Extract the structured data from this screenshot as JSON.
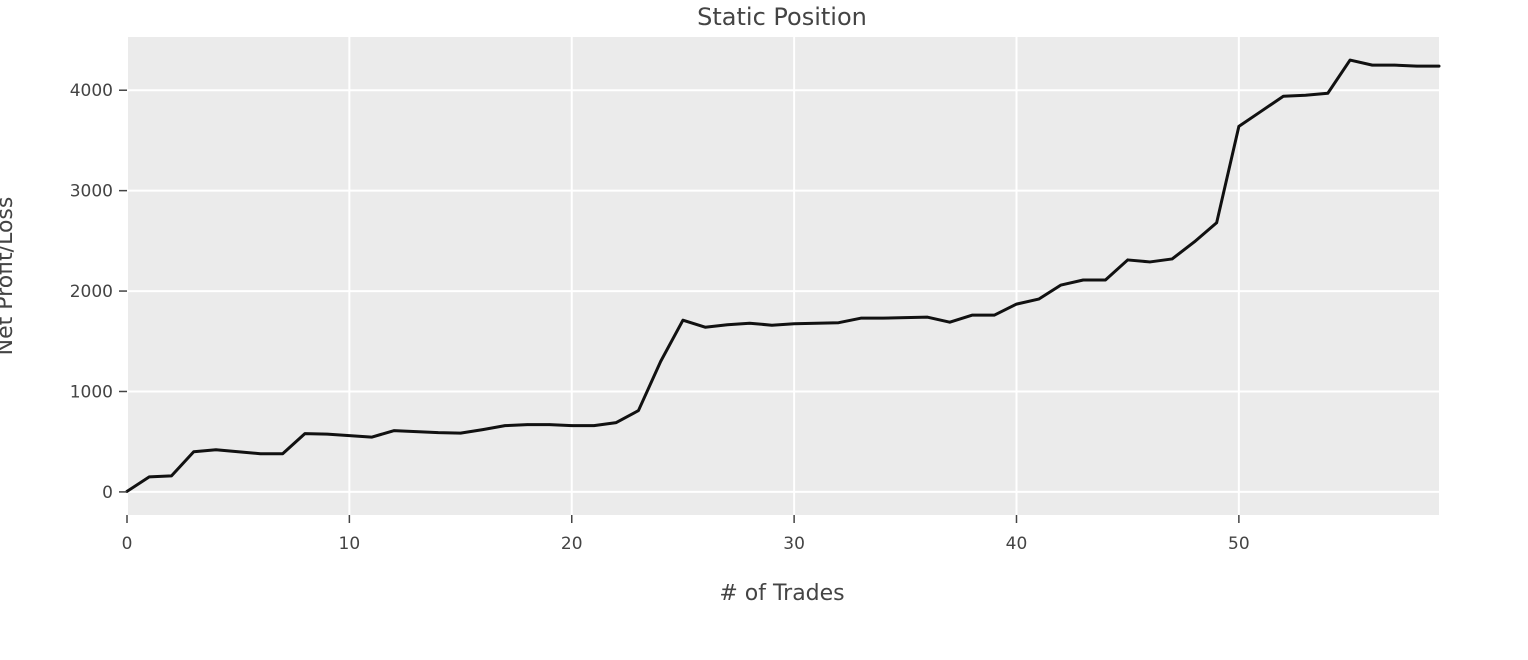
{
  "chart_data": {
    "type": "line",
    "title": "Static Position",
    "xlabel": "# of Trades",
    "ylabel": "Net Profit/Loss",
    "xlim": [
      0,
      59
    ],
    "ylim": [
      -230,
      4530
    ],
    "x_ticks": [
      0,
      10,
      20,
      30,
      40,
      50
    ],
    "y_ticks": [
      0,
      1000,
      2000,
      3000,
      4000
    ],
    "grid": true,
    "legend": "none",
    "colors": {
      "plot_background": "#ebebeb",
      "grid": "#ffffff",
      "line": "#111111"
    },
    "x": [
      0,
      1,
      2,
      3,
      4,
      5,
      6,
      7,
      8,
      9,
      10,
      11,
      12,
      13,
      14,
      15,
      16,
      17,
      18,
      19,
      20,
      21,
      22,
      23,
      24,
      25,
      26,
      27,
      28,
      29,
      30,
      31,
      32,
      33,
      34,
      35,
      36,
      37,
      38,
      39,
      40,
      41,
      42,
      43,
      44,
      45,
      46,
      47,
      48,
      49,
      50,
      51,
      52,
      53,
      54,
      55,
      56,
      57,
      58,
      59
    ],
    "series": [
      {
        "values": [
          5,
          150,
          160,
          400,
          420,
          400,
          380,
          380,
          580,
          575,
          560,
          545,
          610,
          600,
          590,
          585,
          620,
          660,
          670,
          670,
          660,
          660,
          690,
          810,
          1300,
          1710,
          1640,
          1665,
          1680,
          1660,
          1675,
          1680,
          1685,
          1730,
          1730,
          1735,
          1740,
          1690,
          1760,
          1760,
          1870,
          1920,
          2060,
          2110,
          2110,
          2310,
          2290,
          2320,
          2490,
          2680,
          3640,
          3790,
          3940,
          3950,
          3970,
          4300,
          4250,
          4250,
          4240,
          4240
        ]
      }
    ]
  }
}
